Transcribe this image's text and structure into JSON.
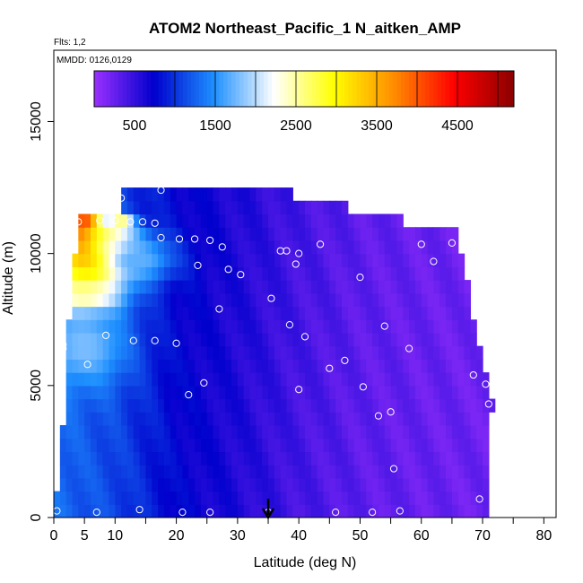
{
  "chart_data": {
    "type": "heatmap",
    "title": "ATOM2 Northeast_Pacific_1 N_aitken_AMP",
    "subtitle_flights": "Flts: 1,2",
    "subtitle_dates": "MMDD: 0126,0129",
    "xlabel": "Latitude (deg N)",
    "ylabel": "Altitude (m)",
    "xlim": [
      0,
      82
    ],
    "ylim": [
      0,
      17700
    ],
    "x_ticks": [
      0,
      5,
      10,
      20,
      30,
      40,
      50,
      60,
      70,
      80
    ],
    "x_minor_ticks": [
      15,
      25,
      35,
      45,
      55,
      65,
      75
    ],
    "y_ticks": [
      0,
      5000,
      10000,
      15000
    ],
    "colorbar": {
      "min": 0,
      "max": 5200,
      "ticks": [
        500,
        1500,
        2500,
        3500,
        4500
      ],
      "colors": [
        "#9b30ff",
        "#0000cd",
        "#1e90ff",
        "#ffffff",
        "#ffff00",
        "#ff8c00",
        "#ff0000",
        "#8b0000"
      ]
    },
    "grid": false,
    "marker_latitude": 35,
    "column_lat_step": 1,
    "altitude_bins": [
      250,
      750,
      1250,
      1750,
      2250,
      2750,
      3250,
      3750,
      4250,
      4750,
      5250,
      5750,
      6250,
      6750,
      7250,
      7750,
      8250,
      8750,
      9250,
      9750,
      10250,
      10750,
      11250,
      11750,
      12250
    ],
    "latitude_extent": [
      {
        "alt": 250,
        "lat": [
          0,
          71
        ]
      },
      {
        "alt": 750,
        "lat": [
          0,
          71
        ]
      },
      {
        "alt": 1250,
        "lat": [
          1,
          71
        ]
      },
      {
        "alt": 1750,
        "lat": [
          1,
          71
        ]
      },
      {
        "alt": 2250,
        "lat": [
          1,
          71
        ]
      },
      {
        "alt": 2750,
        "lat": [
          1,
          71
        ]
      },
      {
        "alt": 3250,
        "lat": [
          1,
          71
        ]
      },
      {
        "alt": 3750,
        "lat": [
          2,
          71
        ]
      },
      {
        "alt": 4250,
        "lat": [
          2,
          72
        ]
      },
      {
        "alt": 4750,
        "lat": [
          2,
          71
        ]
      },
      {
        "alt": 5250,
        "lat": [
          2,
          71
        ]
      },
      {
        "alt": 5750,
        "lat": [
          2,
          70
        ]
      },
      {
        "alt": 6250,
        "lat": [
          2,
          70
        ]
      },
      {
        "alt": 6750,
        "lat": [
          2,
          69
        ]
      },
      {
        "alt": 7250,
        "lat": [
          2,
          69
        ]
      },
      {
        "alt": 7750,
        "lat": [
          3,
          68
        ]
      },
      {
        "alt": 8250,
        "lat": [
          3,
          68
        ]
      },
      {
        "alt": 8750,
        "lat": [
          3,
          68
        ]
      },
      {
        "alt": 9250,
        "lat": [
          3,
          67
        ]
      },
      {
        "alt": 9750,
        "lat": [
          3,
          67
        ]
      },
      {
        "alt": 10250,
        "lat": [
          4,
          66
        ]
      },
      {
        "alt": 10750,
        "lat": [
          4,
          66
        ]
      },
      {
        "alt": 11250,
        "lat": [
          4,
          57
        ]
      },
      {
        "alt": 11750,
        "lat": [
          11,
          48
        ]
      },
      {
        "alt": 12250,
        "lat": [
          11,
          39
        ]
      }
    ],
    "hotspots": [
      {
        "lat": 5,
        "alt": 11000,
        "value": 4900,
        "lat_radius": 3,
        "alt_radius": 500
      },
      {
        "lat": 6,
        "alt": 10300,
        "value": 4500,
        "lat_radius": 4,
        "alt_radius": 600
      },
      {
        "lat": 6,
        "alt": 9500,
        "value": 3800,
        "lat_radius": 6,
        "alt_radius": 700
      },
      {
        "lat": 9,
        "alt": 10500,
        "value": 2800,
        "lat_radius": 5,
        "alt_radius": 500
      },
      {
        "lat": 11,
        "alt": 11200,
        "value": 2700,
        "lat_radius": 2,
        "alt_radius": 300
      },
      {
        "lat": 5,
        "alt": 8500,
        "value": 2800,
        "lat_radius": 6,
        "alt_radius": 800
      },
      {
        "lat": 5,
        "alt": 6500,
        "value": 1800,
        "lat_radius": 7,
        "alt_radius": 1500
      },
      {
        "lat": 14,
        "alt": 9800,
        "value": 1700,
        "lat_radius": 6,
        "alt_radius": 900
      }
    ],
    "background_levels": [
      {
        "lat": 0,
        "value": 1300
      },
      {
        "lat": 10,
        "value": 1100
      },
      {
        "lat": 20,
        "value": 750
      },
      {
        "lat": 30,
        "value": 600
      },
      {
        "lat": 40,
        "value": 420
      },
      {
        "lat": 50,
        "value": 300
      },
      {
        "lat": 60,
        "value": 250
      },
      {
        "lat": 72,
        "value": 220
      }
    ],
    "samples": [
      [
        0.5,
        250
      ],
      [
        7,
        200
      ],
      [
        14,
        300
      ],
      [
        21,
        200
      ],
      [
        25.5,
        200
      ],
      [
        35,
        200
      ],
      [
        46,
        200
      ],
      [
        52,
        200
      ],
      [
        56.5,
        250
      ],
      [
        69.5,
        700
      ],
      [
        55.5,
        1850
      ],
      [
        53,
        3850
      ],
      [
        55,
        4000
      ],
      [
        50.5,
        4950
      ],
      [
        40,
        4850
      ],
      [
        22,
        4650
      ],
      [
        24.5,
        5100
      ],
      [
        68.5,
        5400
      ],
      [
        70.5,
        5050
      ],
      [
        71,
        4300
      ],
      [
        5.5,
        5800
      ],
      [
        45,
        5650
      ],
      [
        47.5,
        5950
      ],
      [
        58,
        6400
      ],
      [
        1.5,
        6400
      ],
      [
        1.5,
        6550
      ],
      [
        20,
        6600
      ],
      [
        16.5,
        6700
      ],
      [
        13,
        6700
      ],
      [
        8.5,
        6900
      ],
      [
        41,
        6850
      ],
      [
        38.5,
        7300
      ],
      [
        54,
        7250
      ],
      [
        27,
        7900
      ],
      [
        35.5,
        8300
      ],
      [
        30.5,
        9200
      ],
      [
        28.5,
        9400
      ],
      [
        50,
        9100
      ],
      [
        23.5,
        9550
      ],
      [
        39.5,
        9600
      ],
      [
        62,
        9700
      ],
      [
        37,
        10100
      ],
      [
        38,
        10100
      ],
      [
        40,
        10000
      ],
      [
        17.5,
        10600
      ],
      [
        20.5,
        10550
      ],
      [
        23,
        10550
      ],
      [
        25.5,
        10500
      ],
      [
        27.5,
        10250
      ],
      [
        43.5,
        10350
      ],
      [
        60,
        10350
      ],
      [
        65,
        10400
      ],
      [
        70,
        10950
      ],
      [
        4,
        11200
      ],
      [
        7.5,
        11250
      ],
      [
        10,
        11250
      ],
      [
        12.5,
        11200
      ],
      [
        14.5,
        11200
      ],
      [
        16.5,
        11150
      ],
      [
        11,
        12100
      ],
      [
        17.5,
        12400
      ]
    ]
  }
}
